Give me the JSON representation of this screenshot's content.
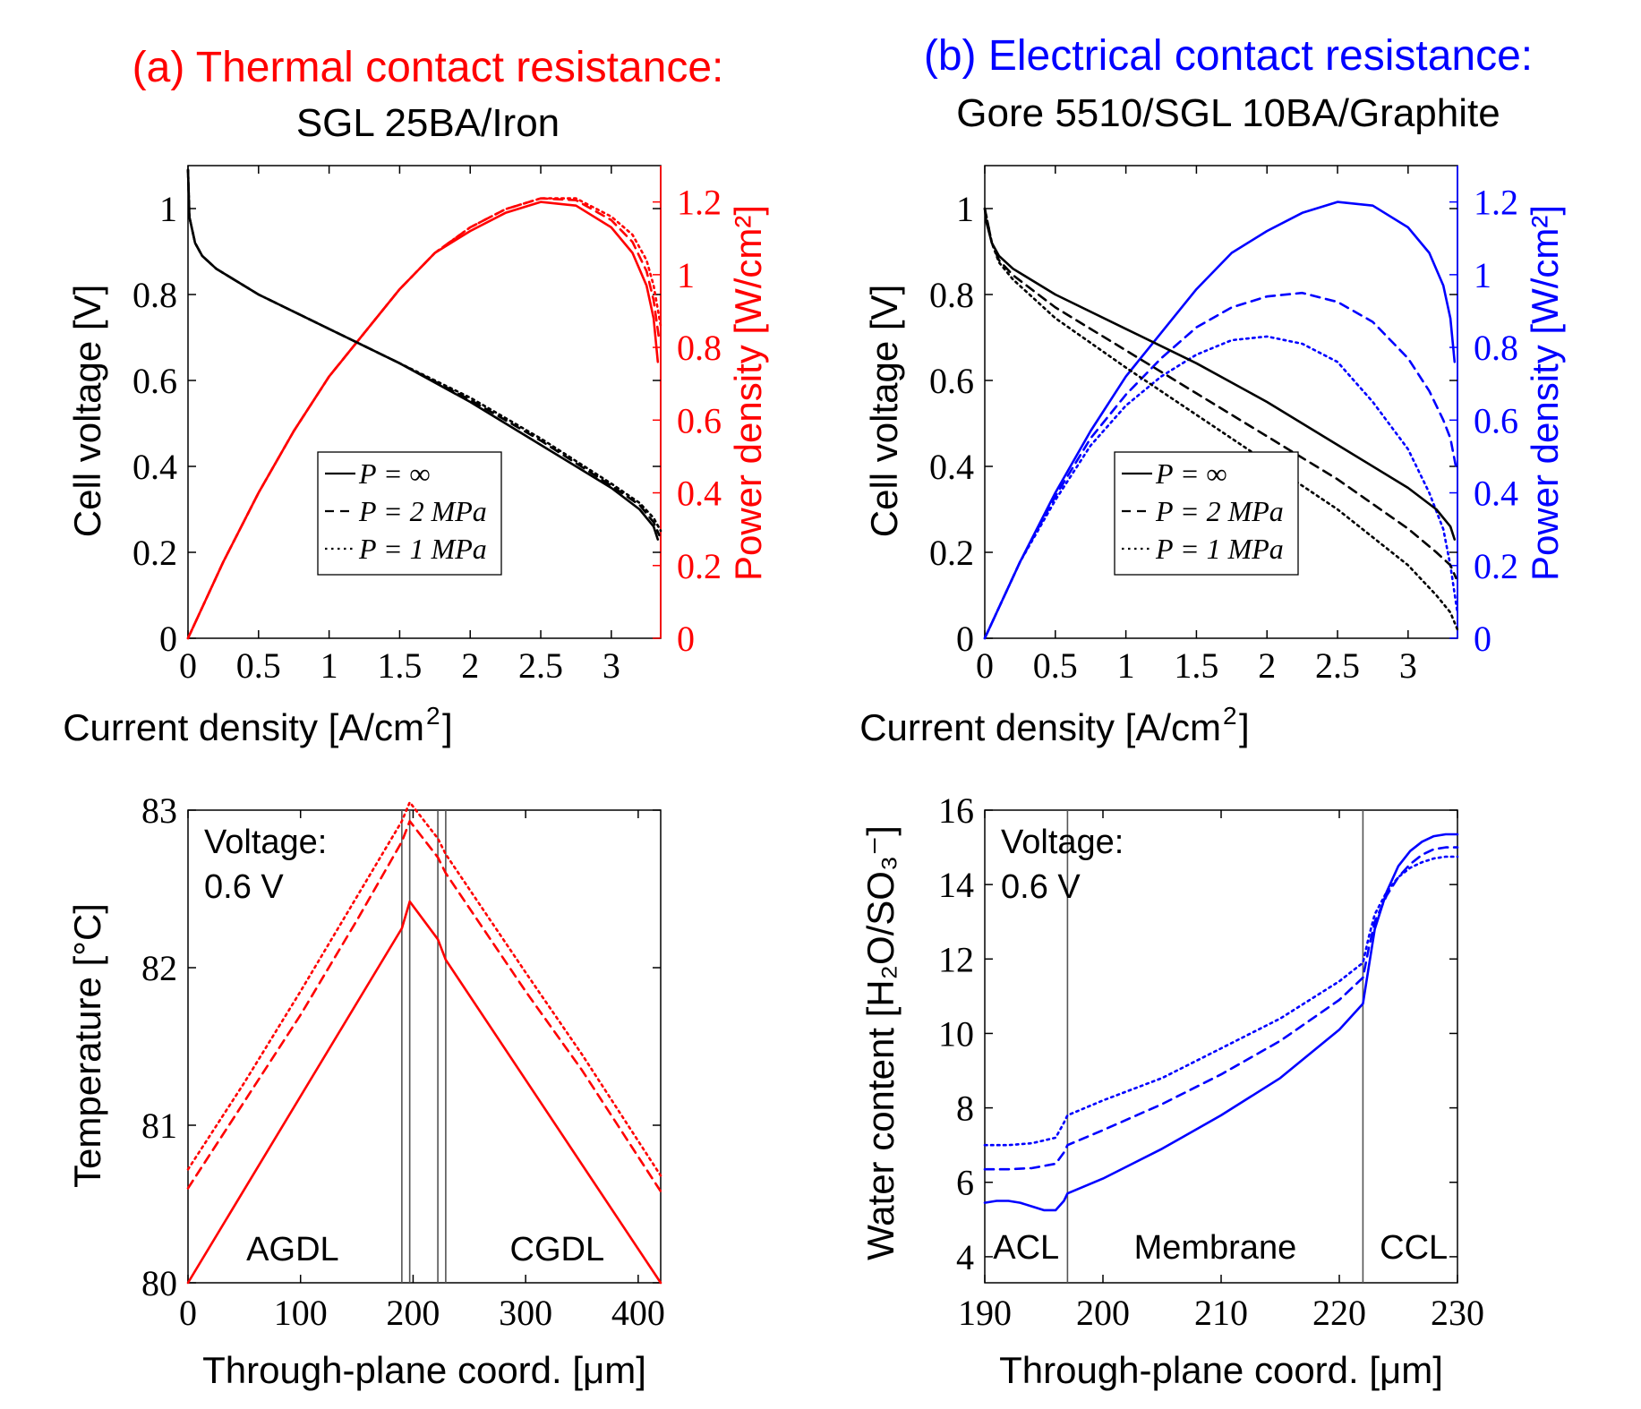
{
  "header": {
    "left_title": "(a) Thermal contact resistance:",
    "left_subtitle": "SGL 25BA/Iron",
    "right_title": "(b) Electrical contact resistance:",
    "right_subtitle": "Gore 5510/SGL 10BA/Graphite"
  },
  "colors": {
    "red": "#ff0000",
    "blue": "#0000ff",
    "black": "#000000",
    "grid": "#555555"
  },
  "legend": [
    {
      "label": "P = ∞",
      "dash": "solid"
    },
    {
      "label": "P = 2 MPa",
      "dash": "dashed"
    },
    {
      "label": "P = 1 MPa",
      "dash": "dotted"
    }
  ],
  "chart_data": [
    {
      "id": "a-polarization",
      "type": "line",
      "xlabel": "Current density [A/cm2]",
      "ylabel": "Cell voltage [V]",
      "y2label": "Power density [W/cm2]",
      "xlim": [
        0,
        3.35
      ],
      "ylim": [
        0,
        1.1
      ],
      "y2lim": [
        0,
        1.3
      ],
      "xticks": [
        "0",
        "0.5",
        "1",
        "1.5",
        "2",
        "2.5",
        "3"
      ],
      "yticks": [
        "0",
        "0.2",
        "0.4",
        "0.6",
        "0.8",
        "1"
      ],
      "y2ticks": [
        "0",
        "0.2",
        "0.4",
        "0.6",
        "0.8",
        "1",
        "1.2"
      ],
      "legend_position": "bottom-center",
      "voltage_series": [
        {
          "name": "P = ∞",
          "dash": "solid",
          "x": [
            0,
            0.01,
            0.05,
            0.1,
            0.2,
            0.5,
            1,
            1.5,
            2,
            2.5,
            3,
            3.2,
            3.3,
            3.33
          ],
          "y": [
            1.09,
            0.98,
            0.92,
            0.89,
            0.86,
            0.8,
            0.72,
            0.64,
            0.55,
            0.45,
            0.35,
            0.3,
            0.26,
            0.23
          ]
        },
        {
          "name": "P = 2 MPa",
          "dash": "dashed",
          "x": [
            0,
            0.01,
            0.05,
            0.1,
            0.2,
            0.5,
            1,
            1.5,
            2,
            2.5,
            3,
            3.2,
            3.3,
            3.34
          ],
          "y": [
            1.09,
            0.98,
            0.92,
            0.89,
            0.86,
            0.8,
            0.72,
            0.64,
            0.555,
            0.46,
            0.355,
            0.31,
            0.27,
            0.24
          ]
        },
        {
          "name": "P = 1 MPa",
          "dash": "dotted",
          "x": [
            0,
            0.01,
            0.05,
            0.1,
            0.2,
            0.5,
            1,
            1.5,
            2,
            2.5,
            3,
            3.2,
            3.3,
            3.35
          ],
          "y": [
            1.09,
            0.98,
            0.92,
            0.89,
            0.86,
            0.8,
            0.72,
            0.64,
            0.56,
            0.465,
            0.36,
            0.315,
            0.28,
            0.25
          ]
        }
      ],
      "power_series": [
        {
          "name": "P = ∞",
          "dash": "solid",
          "x": [
            0,
            0.25,
            0.5,
            0.75,
            1,
            1.25,
            1.5,
            1.75,
            2,
            2.25,
            2.5,
            2.75,
            3,
            3.15,
            3.25,
            3.3,
            3.33
          ],
          "y": [
            0,
            0.21,
            0.4,
            0.57,
            0.72,
            0.84,
            0.96,
            1.06,
            1.12,
            1.17,
            1.2,
            1.19,
            1.13,
            1.06,
            0.97,
            0.88,
            0.76
          ]
        },
        {
          "name": "P = 2 MPa",
          "dash": "dashed",
          "x": [
            0,
            0.25,
            0.5,
            0.75,
            1,
            1.25,
            1.5,
            1.75,
            2,
            2.25,
            2.5,
            2.75,
            3,
            3.15,
            3.25,
            3.3,
            3.34
          ],
          "y": [
            0,
            0.21,
            0.4,
            0.57,
            0.72,
            0.84,
            0.96,
            1.06,
            1.13,
            1.18,
            1.21,
            1.205,
            1.15,
            1.09,
            1.01,
            0.93,
            0.82
          ]
        },
        {
          "name": "P = 1 MPa",
          "dash": "dotted",
          "x": [
            0,
            0.25,
            0.5,
            0.75,
            1,
            1.25,
            1.5,
            1.75,
            2,
            2.25,
            2.5,
            2.75,
            3,
            3.15,
            3.25,
            3.3,
            3.35
          ],
          "y": [
            0,
            0.21,
            0.4,
            0.57,
            0.72,
            0.84,
            0.96,
            1.06,
            1.13,
            1.18,
            1.21,
            1.21,
            1.16,
            1.11,
            1.04,
            0.97,
            0.86
          ]
        }
      ]
    },
    {
      "id": "b-polarization",
      "type": "line",
      "xlabel": "Current density [A/cm2]",
      "ylabel": "Cell voltage [V]",
      "y2label": "Power density [W/cm2]",
      "xlim": [
        0,
        3.35
      ],
      "ylim": [
        0,
        1.1
      ],
      "y2lim": [
        0,
        1.3
      ],
      "xticks": [
        "0",
        "0.5",
        "1",
        "1.5",
        "2",
        "2.5",
        "3"
      ],
      "yticks": [
        "0",
        "0.2",
        "0.4",
        "0.6",
        "0.8",
        "1"
      ],
      "y2ticks": [
        "0",
        "0.2",
        "0.4",
        "0.6",
        "0.8",
        "1",
        "1.2"
      ],
      "legend_position": "bottom-center",
      "voltage_series": [
        {
          "name": "P = ∞",
          "dash": "solid",
          "x": [
            0,
            0.01,
            0.05,
            0.1,
            0.2,
            0.5,
            1,
            1.5,
            2,
            2.5,
            3,
            3.2,
            3.3,
            3.33
          ],
          "y": [
            1.0,
            0.97,
            0.92,
            0.89,
            0.86,
            0.8,
            0.72,
            0.64,
            0.55,
            0.45,
            0.35,
            0.3,
            0.26,
            0.23
          ]
        },
        {
          "name": "P = 2 MPa",
          "dash": "dashed",
          "x": [
            0,
            0.05,
            0.1,
            0.2,
            0.5,
            1,
            1.5,
            2,
            2.5,
            3,
            3.2,
            3.3,
            3.34
          ],
          "y": [
            1.0,
            0.92,
            0.88,
            0.845,
            0.77,
            0.67,
            0.57,
            0.47,
            0.37,
            0.255,
            0.2,
            0.17,
            0.14
          ]
        },
        {
          "name": "P = 1 MPa",
          "dash": "dotted",
          "x": [
            0,
            0.05,
            0.1,
            0.2,
            0.5,
            1,
            1.5,
            2,
            2.5,
            3,
            3.2,
            3.3,
            3.35
          ],
          "y": [
            1.0,
            0.92,
            0.875,
            0.835,
            0.745,
            0.63,
            0.52,
            0.41,
            0.3,
            0.17,
            0.1,
            0.06,
            0.02
          ]
        }
      ],
      "power_series": [
        {
          "name": "P = ∞",
          "dash": "solid",
          "x": [
            0,
            0.25,
            0.5,
            0.75,
            1,
            1.25,
            1.5,
            1.75,
            2,
            2.25,
            2.5,
            2.75,
            3,
            3.15,
            3.25,
            3.3,
            3.33
          ],
          "y": [
            0,
            0.21,
            0.4,
            0.57,
            0.72,
            0.84,
            0.96,
            1.06,
            1.12,
            1.17,
            1.2,
            1.19,
            1.13,
            1.06,
            0.97,
            0.88,
            0.76
          ]
        },
        {
          "name": "P = 2 MPa",
          "dash": "dashed",
          "x": [
            0,
            0.25,
            0.5,
            0.75,
            1,
            1.25,
            1.5,
            1.75,
            2,
            2.25,
            2.5,
            2.75,
            3,
            3.15,
            3.25,
            3.3,
            3.34
          ],
          "y": [
            0,
            0.21,
            0.39,
            0.55,
            0.67,
            0.77,
            0.855,
            0.91,
            0.94,
            0.95,
            0.925,
            0.87,
            0.77,
            0.68,
            0.6,
            0.55,
            0.47
          ]
        },
        {
          "name": "P = 1 MPa",
          "dash": "dotted",
          "x": [
            0,
            0.25,
            0.5,
            0.75,
            1,
            1.25,
            1.5,
            1.75,
            2,
            2.25,
            2.5,
            2.75,
            3,
            3.15,
            3.25,
            3.3,
            3.35
          ],
          "y": [
            0,
            0.21,
            0.38,
            0.53,
            0.64,
            0.72,
            0.78,
            0.82,
            0.83,
            0.81,
            0.76,
            0.65,
            0.52,
            0.4,
            0.3,
            0.2,
            0.07
          ]
        }
      ]
    },
    {
      "id": "a-temperature",
      "type": "line",
      "xlabel": "Through-plane coord. [μm]",
      "ylabel": "Temperature [°C]",
      "xlim": [
        0,
        420
      ],
      "ylim": [
        80,
        83
      ],
      "xticks": [
        0,
        100,
        200,
        300,
        400
      ],
      "yticks": [
        80,
        81,
        82,
        83
      ],
      "annotation": "Voltage:\n0.6 V",
      "region_labels": [
        {
          "text": "AGDL",
          "x": 93
        },
        {
          "text": "CGDL",
          "x": 328
        }
      ],
      "vlines": [
        190,
        197,
        222,
        229
      ],
      "series": [
        {
          "name": "P = ∞",
          "dash": "solid",
          "x": [
            0,
            190,
            197,
            222,
            229,
            420
          ],
          "y": [
            80,
            82.25,
            82.42,
            82.18,
            82.05,
            80
          ]
        },
        {
          "name": "P = 2 MPa",
          "dash": "dashed",
          "x": [
            0,
            50,
            100,
            150,
            190,
            197,
            222,
            229,
            300,
            350,
            420
          ],
          "y": [
            80.6,
            81.15,
            81.7,
            82.3,
            82.8,
            82.93,
            82.7,
            82.6,
            81.85,
            81.35,
            80.58
          ]
        },
        {
          "name": "P = 1 MPa",
          "dash": "dotted",
          "x": [
            0,
            50,
            100,
            150,
            190,
            197,
            222,
            229,
            300,
            350,
            420
          ],
          "y": [
            80.72,
            81.27,
            81.85,
            82.45,
            82.93,
            83.05,
            82.82,
            82.72,
            81.97,
            81.45,
            80.68
          ]
        }
      ]
    },
    {
      "id": "b-water-content",
      "type": "line",
      "xlabel": "Through-plane coord. [μm]",
      "ylabel": "Water content [H2O/SO3-]",
      "xlim": [
        190,
        230
      ],
      "ylim": [
        3.3,
        16
      ],
      "xticks": [
        190,
        200,
        210,
        220,
        230
      ],
      "yticks": [
        4,
        6,
        8,
        10,
        12,
        14,
        16
      ],
      "annotation": "Voltage:\n0.6 V",
      "region_labels": [
        {
          "text": "ACL",
          "x": 193.5
        },
        {
          "text": "Membrane",
          "x": 209.5
        },
        {
          "text": "CCL",
          "x": 226.3
        }
      ],
      "vlines": [
        197,
        222
      ],
      "series": [
        {
          "name": "P = ∞",
          "dash": "solid",
          "x": [
            190,
            191,
            192,
            193,
            194,
            195,
            196,
            196.7,
            197,
            200,
            205,
            210,
            215,
            220,
            222,
            222.5,
            223,
            224,
            225,
            226,
            227,
            228,
            229,
            230
          ],
          "y": [
            5.45,
            5.5,
            5.5,
            5.45,
            5.35,
            5.25,
            5.25,
            5.5,
            5.7,
            6.1,
            6.9,
            7.8,
            8.8,
            10.1,
            10.8,
            11.8,
            12.8,
            13.8,
            14.5,
            14.9,
            15.15,
            15.3,
            15.35,
            15.35
          ]
        },
        {
          "name": "P = 2 MPa",
          "dash": "dashed",
          "x": [
            190,
            192,
            194,
            196,
            196.7,
            197,
            200,
            205,
            210,
            215,
            220,
            222,
            222.5,
            223,
            224,
            225,
            226,
            227,
            228,
            229,
            230
          ],
          "y": [
            6.35,
            6.35,
            6.38,
            6.5,
            6.8,
            7.0,
            7.4,
            8.1,
            8.9,
            9.8,
            10.9,
            11.5,
            12.3,
            13.0,
            13.7,
            14.2,
            14.55,
            14.8,
            14.95,
            15.0,
            15.0
          ]
        },
        {
          "name": "P = 1 MPa",
          "dash": "dotted",
          "x": [
            190,
            192,
            194,
            196,
            196.7,
            197,
            200,
            205,
            210,
            215,
            220,
            222,
            222.5,
            223,
            224,
            225,
            226,
            227,
            228,
            229,
            230
          ],
          "y": [
            7.0,
            7.0,
            7.05,
            7.2,
            7.6,
            7.8,
            8.2,
            8.8,
            9.6,
            10.4,
            11.4,
            11.9,
            12.6,
            13.2,
            13.8,
            14.2,
            14.45,
            14.6,
            14.7,
            14.75,
            14.75
          ]
        }
      ]
    }
  ]
}
